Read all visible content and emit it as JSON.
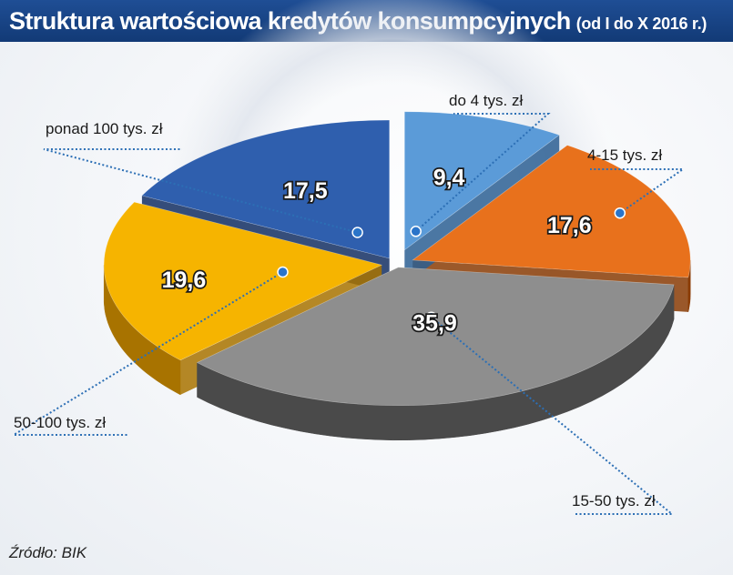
{
  "chart_data": {
    "type": "pie",
    "title": "Struktura wartościowa kredytów konsumpcyjnych",
    "subtitle": "(od I do X 2016 r.)",
    "categories": [
      "do 4 tys. zł",
      "4-15 tys. zł",
      "15-50 tys. zł",
      "50-100 tys. zł",
      "ponad 100 tys. zł"
    ],
    "values": [
      9.4,
      17.6,
      35.9,
      19.6,
      17.5
    ],
    "value_labels": [
      "9,4",
      "17,6",
      "35,9",
      "19,6",
      "17,5"
    ],
    "colors": [
      "#5b9bd8",
      "#e8711c",
      "#8e8e8e",
      "#f6b400",
      "#2f5fae"
    ],
    "side_colors": [
      "#2c5f93",
      "#8a3c05",
      "#4a4a4a",
      "#a87300",
      "#132f63"
    ],
    "style": "3d-exploded",
    "legend": "none"
  },
  "source": "Źródło: BIK"
}
